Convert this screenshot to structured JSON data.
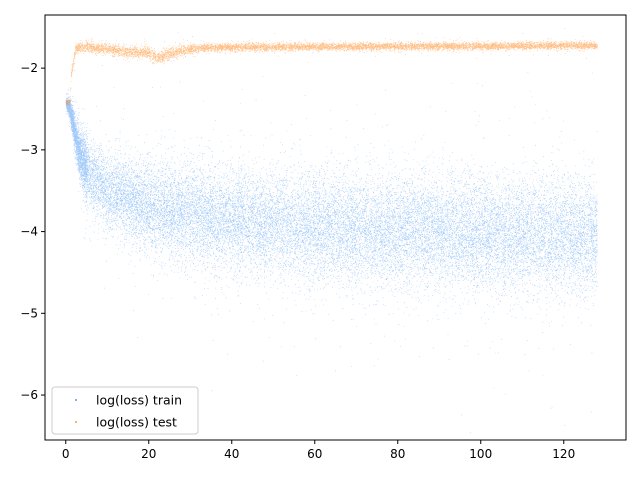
{
  "chart_data": {
    "type": "scatter",
    "xlim": [
      -5,
      135
    ],
    "ylim": [
      -6.55,
      -1.35
    ],
    "x_ticks": [
      0,
      20,
      40,
      60,
      80,
      100,
      120
    ],
    "y_ticks": [
      -2,
      -3,
      -4,
      -5,
      -6
    ],
    "x_tick_labels": [
      "0",
      "20",
      "40",
      "60",
      "80",
      "100",
      "120"
    ],
    "y_tick_labels": [
      "−2",
      "−3",
      "−4",
      "−5",
      "−6"
    ],
    "grid": false,
    "legend_position": "lower-left",
    "series": [
      {
        "name": "log(loss) train",
        "color": "#1f7ff0",
        "x_range": [
          0,
          128
        ],
        "points": 26000,
        "trend": [
          [
            0,
            -2.42
          ],
          [
            1,
            -2.5
          ],
          [
            2,
            -2.75
          ],
          [
            3,
            -3.0
          ],
          [
            5,
            -3.25
          ],
          [
            10,
            -3.5
          ],
          [
            20,
            -3.7
          ],
          [
            40,
            -3.85
          ],
          [
            60,
            -3.95
          ],
          [
            80,
            -3.98
          ],
          [
            100,
            -4.02
          ],
          [
            128,
            -4.05
          ]
        ],
        "spread": [
          [
            0,
            0.02
          ],
          [
            2,
            0.1
          ],
          [
            5,
            0.2
          ],
          [
            20,
            0.28
          ],
          [
            60,
            0.33
          ],
          [
            128,
            0.35
          ]
        ]
      },
      {
        "name": "log(loss) test",
        "color": "#ff7f0e",
        "x_range": [
          0,
          128
        ],
        "points": 9000,
        "trend": [
          [
            0,
            -2.42
          ],
          [
            1,
            -2.4
          ],
          [
            1.3,
            -2.05
          ],
          [
            2.5,
            -1.75
          ],
          [
            5,
            -1.74
          ],
          [
            10,
            -1.76
          ],
          [
            15,
            -1.8
          ],
          [
            20,
            -1.8
          ],
          [
            22,
            -1.88
          ],
          [
            25,
            -1.82
          ],
          [
            30,
            -1.76
          ],
          [
            40,
            -1.74
          ],
          [
            128,
            -1.72
          ]
        ],
        "spread": [
          [
            0,
            0.02
          ],
          [
            2,
            0.03
          ],
          [
            10,
            0.03
          ],
          [
            25,
            0.04
          ],
          [
            30,
            0.025
          ],
          [
            128,
            0.022
          ]
        ]
      }
    ]
  }
}
